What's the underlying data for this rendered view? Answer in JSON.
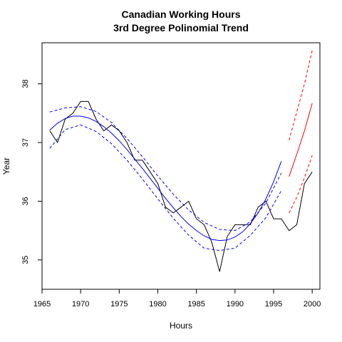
{
  "chart_data": {
    "type": "line",
    "title": "Canadian Working Hours",
    "subtitle": "3rd Degree Polinomial Trend",
    "xlabel": "Hours",
    "ylabel": "Year",
    "xlim": [
      1965.0,
      2001.0
    ],
    "ylim": [
      34.5,
      38.7
    ],
    "x_ticks": [
      1965,
      1970,
      1975,
      1980,
      1985,
      1990,
      1995,
      2000
    ],
    "y_ticks": [
      35,
      36,
      37,
      38
    ],
    "grid": false,
    "legend": "none",
    "colors": {
      "observed": "#000000",
      "fit": "#0000ff",
      "forecast": "#ff0000"
    },
    "series": [
      {
        "key": "observed",
        "style": "solid",
        "color": "#000000",
        "x": [
          1966,
          1967,
          1968,
          1969,
          1970,
          1971,
          1972,
          1973,
          1974,
          1975,
          1976,
          1977,
          1978,
          1979,
          1980,
          1981,
          1982,
          1983,
          1984,
          1985,
          1986,
          1987,
          1988,
          1989,
          1990,
          1991,
          1992,
          1993,
          1994,
          1995,
          1996,
          1997,
          1998,
          1999,
          2000
        ],
        "y": [
          37.2,
          37.0,
          37.4,
          37.5,
          37.7,
          37.7,
          37.4,
          37.2,
          37.3,
          37.2,
          37.0,
          36.7,
          36.7,
          36.5,
          36.3,
          35.9,
          35.8,
          35.9,
          36.0,
          35.7,
          35.6,
          35.3,
          34.8,
          35.4,
          35.6,
          35.6,
          35.6,
          35.9,
          36.0,
          35.7,
          35.7,
          35.5,
          35.6,
          36.3,
          36.5
        ]
      },
      {
        "key": "fit",
        "style": "solid",
        "color": "#0000ff",
        "x": [
          1966,
          1967,
          1968,
          1969,
          1970,
          1971,
          1972,
          1973,
          1974,
          1975,
          1976,
          1977,
          1978,
          1979,
          1980,
          1981,
          1982,
          1983,
          1984,
          1985,
          1986,
          1987,
          1988,
          1989,
          1990,
          1991,
          1992,
          1993,
          1994,
          1995,
          1996
        ],
        "y": [
          37.21,
          37.33,
          37.41,
          37.45,
          37.45,
          37.42,
          37.36,
          37.27,
          37.16,
          37.03,
          36.88,
          36.72,
          36.56,
          36.39,
          36.22,
          36.05,
          35.89,
          35.74,
          35.61,
          35.5,
          35.41,
          35.35,
          35.33,
          35.34,
          35.39,
          35.48,
          35.62,
          35.8,
          36.04,
          36.33,
          36.68
        ]
      },
      {
        "key": "fit_upper",
        "style": "dashed",
        "color": "#0000ff",
        "x": [
          1966,
          1968,
          1970,
          1972,
          1974,
          1976,
          1978,
          1980,
          1982,
          1984,
          1986,
          1988,
          1990,
          1992,
          1994,
          1996
        ],
        "y": [
          37.52,
          37.59,
          37.61,
          37.53,
          37.34,
          37.07,
          36.76,
          36.43,
          36.12,
          35.85,
          35.64,
          35.52,
          35.5,
          35.65,
          35.97,
          36.48
        ]
      },
      {
        "key": "fit_lower",
        "style": "dashed",
        "color": "#0000ff",
        "x": [
          1966,
          1968,
          1970,
          1972,
          1974,
          1976,
          1978,
          1980,
          1982,
          1984,
          1986,
          1988,
          1990,
          1992,
          1994,
          1996
        ],
        "y": [
          36.9,
          37.22,
          37.3,
          37.19,
          36.98,
          36.7,
          36.38,
          36.04,
          35.71,
          35.42,
          35.2,
          35.16,
          35.2,
          35.42,
          35.72,
          36.18
        ]
      },
      {
        "key": "forecast",
        "style": "solid",
        "color": "#ff0000",
        "x": [
          1997,
          1998,
          1999,
          2000
        ],
        "y": [
          36.42,
          36.8,
          37.2,
          37.67
        ]
      },
      {
        "key": "forecast_upper",
        "style": "dashed",
        "color": "#ff0000",
        "x": [
          1997,
          1998,
          1999,
          2000
        ],
        "y": [
          37.04,
          37.52,
          38.0,
          38.57
        ]
      },
      {
        "key": "forecast_lower",
        "style": "dashed",
        "color": "#ff0000",
        "x": [
          1997,
          1998,
          1999,
          2000
        ],
        "y": [
          35.8,
          36.07,
          36.4,
          36.78
        ]
      }
    ]
  }
}
